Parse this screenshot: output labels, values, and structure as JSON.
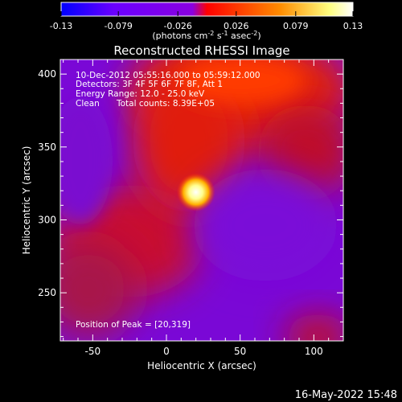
{
  "chart_data": {
    "type": "heatmap",
    "title": "Reconstructed RHESSI Image",
    "xlabel": "Heliocentric X (arcsec)",
    "ylabel": "Heliocentric Y (arcsec)",
    "xlim": [
      -72,
      120
    ],
    "ylim": [
      217,
      410
    ],
    "xticks": [
      -50,
      0,
      50,
      100
    ],
    "yticks": [
      250,
      300,
      350,
      400
    ],
    "colorbar": {
      "range": [
        -0.13,
        0.13
      ],
      "ticks": [
        "-0.13",
        "-0.079",
        "-0.026",
        "0.026",
        "0.079",
        "0.13"
      ],
      "label_parts": [
        "(photons cm",
        "-2",
        " s",
        "-1",
        " asec",
        "-2",
        ")"
      ],
      "colors": [
        "#0000ff",
        "#6a00ff",
        "#8a00e0",
        "#ff0000",
        "#ff8c00",
        "#ffff80",
        "#ffffff"
      ]
    },
    "info": {
      "time_range": "10-Dec-2012 05:55:16.000 to 05:59:12.000",
      "detectors": "Detectors: 3F 4F 5F 6F 7F 8F, Att 1",
      "energy": "Energy Range: 12.0 - 25.0 keV",
      "method": "Clean",
      "counts": "Total counts: 8.39E+05",
      "peak": "Position of Peak = [20,319]"
    },
    "peak": [
      20,
      319
    ],
    "grid": false
  },
  "footer": {
    "date": "16-May-2022 15:48"
  }
}
